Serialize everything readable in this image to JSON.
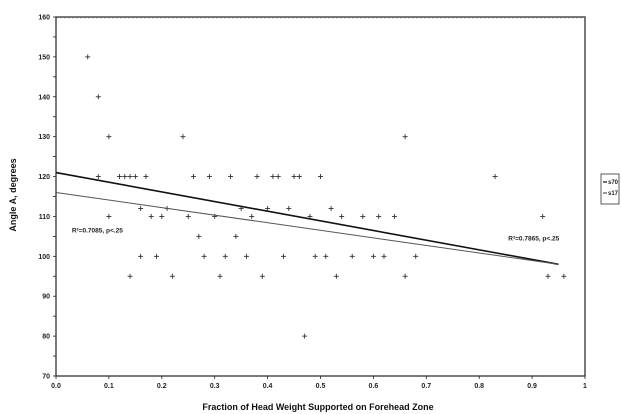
{
  "chart_data": {
    "type": "scatter",
    "title": "",
    "xlabel": "Fraction of Head Weight Supported on Forehead Zone",
    "ylabel": "Angle A, degrees",
    "xlim": [
      0,
      1
    ],
    "ylim": [
      70,
      160
    ],
    "x_ticks": [
      "0.0",
      "0.1",
      "0.2",
      "0.3",
      "0.4",
      "0.5",
      "0.6",
      "0.7",
      "0.8",
      "0.9",
      "1"
    ],
    "y_ticks": [
      "70",
      "75",
      "80",
      "85",
      "90",
      "95",
      "100",
      "105",
      "110",
      "115",
      "120",
      "125",
      "130",
      "135",
      "140",
      "145",
      "150",
      "155",
      "160"
    ],
    "grid": false,
    "legend_position": "right",
    "legend": [
      "s70",
      "s17"
    ],
    "series": [
      {
        "points": [
          [
            0.06,
            150
          ],
          [
            0.08,
            140
          ],
          [
            0.1,
            130
          ],
          [
            0.08,
            120
          ],
          [
            0.1,
            110
          ],
          [
            0.12,
            120
          ],
          [
            0.13,
            120
          ],
          [
            0.14,
            120
          ],
          [
            0.15,
            120
          ],
          [
            0.16,
            112
          ],
          [
            0.17,
            120
          ],
          [
            0.16,
            100
          ],
          [
            0.14,
            95
          ],
          [
            0.18,
            110
          ],
          [
            0.19,
            100
          ],
          [
            0.2,
            110
          ],
          [
            0.21,
            112
          ],
          [
            0.22,
            95
          ],
          [
            0.24,
            130
          ],
          [
            0.25,
            110
          ],
          [
            0.26,
            120
          ],
          [
            0.27,
            105
          ],
          [
            0.28,
            100
          ],
          [
            0.29,
            120
          ],
          [
            0.3,
            110
          ],
          [
            0.31,
            95
          ],
          [
            0.32,
            100
          ],
          [
            0.33,
            120
          ],
          [
            0.34,
            105
          ],
          [
            0.35,
            112
          ],
          [
            0.36,
            100
          ],
          [
            0.37,
            110
          ],
          [
            0.38,
            120
          ],
          [
            0.39,
            95
          ],
          [
            0.4,
            112
          ],
          [
            0.41,
            120
          ],
          [
            0.42,
            120
          ],
          [
            0.43,
            100
          ],
          [
            0.44,
            112
          ],
          [
            0.45,
            120
          ],
          [
            0.46,
            120
          ],
          [
            0.47,
            80
          ],
          [
            0.48,
            110
          ],
          [
            0.49,
            100
          ],
          [
            0.5,
            120
          ],
          [
            0.51,
            100
          ],
          [
            0.52,
            112
          ],
          [
            0.53,
            95
          ],
          [
            0.54,
            110
          ],
          [
            0.56,
            100
          ],
          [
            0.58,
            110
          ],
          [
            0.6,
            100
          ],
          [
            0.61,
            110
          ],
          [
            0.62,
            100
          ],
          [
            0.64,
            110
          ],
          [
            0.66,
            130
          ],
          [
            0.66,
            95
          ],
          [
            0.68,
            100
          ],
          [
            0.83,
            120
          ],
          [
            0.92,
            110
          ],
          [
            0.93,
            95
          ],
          [
            0.96,
            95
          ]
        ]
      }
    ],
    "trend_lines": [
      {
        "x": [
          0.0,
          0.95
        ],
        "y": [
          121,
          98
        ]
      },
      {
        "x": [
          0.0,
          0.95
        ],
        "y": [
          116,
          98
        ]
      }
    ],
    "annotations": [
      {
        "text": "R²=0.7085, p<.25",
        "x": 0.03,
        "y": 106
      },
      {
        "text": "R²=0.7865, p<.25",
        "x": 0.855,
        "y": 104
      }
    ]
  }
}
